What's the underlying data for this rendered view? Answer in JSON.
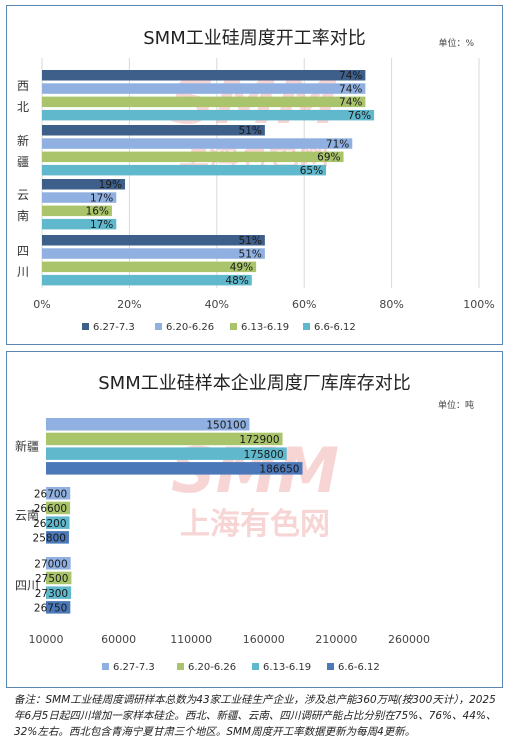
{
  "watermark": {
    "line1": "SMM",
    "line2": "上海有色网"
  },
  "chart_data": [
    {
      "type": "bar",
      "orientation": "horizontal",
      "title": "SMM工业硅周度开工率对比",
      "unit": "单位：%",
      "categories": [
        "西北",
        "新疆",
        "云南",
        "四川"
      ],
      "xlim": [
        0,
        100
      ],
      "xticks": [
        "0%",
        "20%",
        "40%",
        "60%",
        "80%",
        "100%"
      ],
      "grid": true,
      "legend_position": "bottom",
      "series": [
        {
          "name": "6.27-7.3",
          "color": "#3e5f8a",
          "values": [
            74,
            51,
            19,
            51
          ],
          "labels": [
            "74%",
            "51%",
            "19%",
            "51%"
          ]
        },
        {
          "name": "6.20-6.26",
          "color": "#8fb0e0",
          "values": [
            74,
            71,
            17,
            51
          ],
          "labels": [
            "74%",
            "71%",
            "17%",
            "51%"
          ]
        },
        {
          "name": "6.13-6.19",
          "color": "#a9c46a",
          "values": [
            74,
            69,
            16,
            49
          ],
          "labels": [
            "74%",
            "69%",
            "16%",
            "49%"
          ]
        },
        {
          "name": "6.6-6.12",
          "color": "#5fb8cc",
          "values": [
            76,
            65,
            17,
            48
          ],
          "labels": [
            "76%",
            "65%",
            "17%",
            "48%"
          ]
        }
      ]
    },
    {
      "type": "bar",
      "orientation": "horizontal",
      "title": "SMM工业硅样本企业周度厂库库存对比",
      "unit": "单位：吨",
      "categories": [
        "新疆",
        "云南",
        "四川"
      ],
      "xlim": [
        10000,
        260000
      ],
      "xticks": [
        "10000",
        "60000",
        "110000",
        "160000",
        "210000",
        "260000"
      ],
      "grid": false,
      "legend_position": "bottom",
      "series": [
        {
          "name": "6.27-7.3",
          "color": "#8fb0e0",
          "values": [
            150100,
            26700,
            27000
          ],
          "labels": [
            "150100",
            "26700",
            "27000"
          ]
        },
        {
          "name": "6.20-6.26",
          "color": "#a9c46a",
          "values": [
            172900,
            26600,
            27500
          ],
          "labels": [
            "172900",
            "26600",
            "27500"
          ]
        },
        {
          "name": "6.13-6.19",
          "color": "#5fb8cc",
          "values": [
            175800,
            26200,
            27300
          ],
          "labels": [
            "175800",
            "26200",
            "27300"
          ]
        },
        {
          "name": "6.6-6.12",
          "color": "#4b78b8",
          "values": [
            186650,
            25800,
            26750
          ],
          "labels": [
            "186650",
            "25800",
            "26750"
          ]
        }
      ]
    }
  ],
  "footnote": "备注：SMM工业硅周度调研样本总数为43家工业硅生产企业，涉及总产能360万吨(按300天计），2025年6月5日起四川增加一家样本硅企。西北、新疆、云南、四川调研产能占比分别在75%、76%、44%、32%左右。西北包含青海宁夏甘肃三个地区。SMM周度开工率数据更新为每周4更新。"
}
